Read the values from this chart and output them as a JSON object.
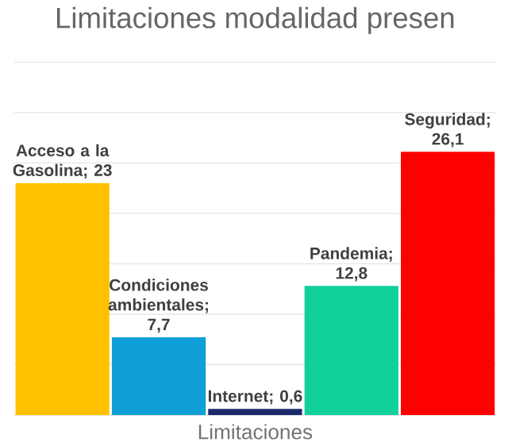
{
  "chart_data": {
    "type": "bar",
    "title": "Limitaciones modalidad presen",
    "xlabel": "Limitaciones",
    "categories": [
      null,
      null,
      null,
      null,
      null
    ],
    "values": [
      23,
      7.7,
      0.6,
      12.8,
      26.1
    ],
    "colors": [
      "#ffc000",
      "#0f9ed5",
      "#1b2a6b",
      "#12d09a",
      "#ff0000"
    ],
    "value_labels": [
      "Acceso a la Gasolina; 23",
      "Condiciones ambientales; 7,7",
      "Internet; 0,6",
      "Pandemia; 12,8",
      "Seguridad; 26,1"
    ],
    "ylim": [
      0,
      35
    ],
    "yticks": [
      {
        "value": 0,
        "label": null
      },
      {
        "value": 5,
        "label": null
      },
      {
        "value": 10,
        "label": null
      },
      {
        "value": 15,
        "label": null
      },
      {
        "value": 20,
        "label": null
      },
      {
        "value": 25,
        "label": null
      },
      {
        "value": 30,
        "label": null
      },
      {
        "value": 35,
        "label": null
      }
    ],
    "grid": "y"
  }
}
